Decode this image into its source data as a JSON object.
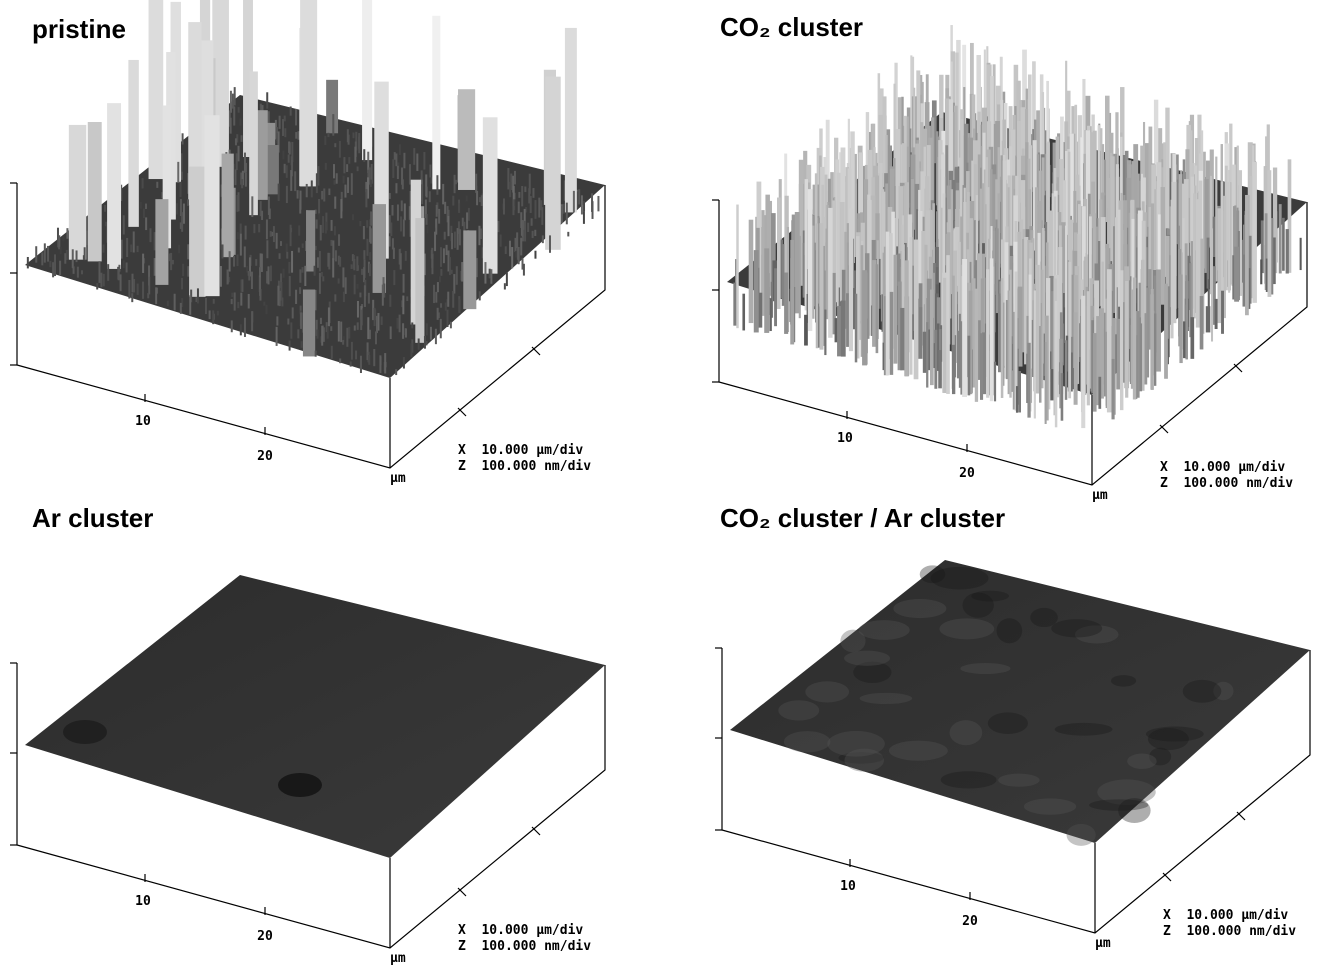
{
  "panels": [
    {
      "title": "pristine",
      "x_ticks": [
        "10",
        "20"
      ],
      "unit": "μm",
      "scale_x": "X  10.000 μm/div",
      "scale_z": "Z  100.000 nm/div"
    },
    {
      "title": "CO₂ cluster",
      "x_ticks": [
        "10",
        "20"
      ],
      "unit": "μm",
      "scale_x": "X  10.000 μm/div",
      "scale_z": "Z  100.000 nm/div"
    },
    {
      "title": "Ar cluster",
      "x_ticks": [
        "10",
        "20"
      ],
      "unit": "μm",
      "scale_x": "X  10.000 μm/div",
      "scale_z": "Z  100.000 nm/div"
    },
    {
      "title": "CO₂ cluster / Ar cluster",
      "x_ticks": [
        "10",
        "20"
      ],
      "unit": "μm",
      "scale_x": "X  10.000 μm/div",
      "scale_z": "Z  100.000 nm/div"
    }
  ]
}
